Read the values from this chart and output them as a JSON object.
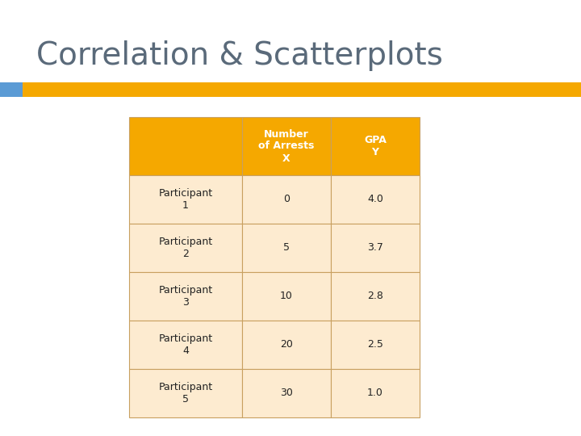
{
  "title": "Correlation & Scatterplots",
  "title_fontsize": 28,
  "title_color": "#5A6A7A",
  "background_color": "#FFFFFF",
  "accent_bar_color": "#F5A800",
  "accent_bar_blue": "#5B9BD5",
  "header_bg": "#F5A800",
  "header_text_color": "#FFFFFF",
  "row_bg": "#FDEBD0",
  "cell_text_color": "#222222",
  "col_headers": [
    "Number\nof Arrests\nX",
    "GPA\nY"
  ],
  "row_labels": [
    "Participant\n1",
    "Participant\n2",
    "Participant\n3",
    "Participant\n4",
    "Participant\n5"
  ],
  "arrests": [
    "0",
    "5",
    "10",
    "20",
    "30"
  ],
  "gpa": [
    "4.0",
    "3.7",
    "2.8",
    "2.5",
    "1.0"
  ],
  "font_size_header": 9,
  "font_size_cell": 9,
  "font_size_rowlabel": 9
}
